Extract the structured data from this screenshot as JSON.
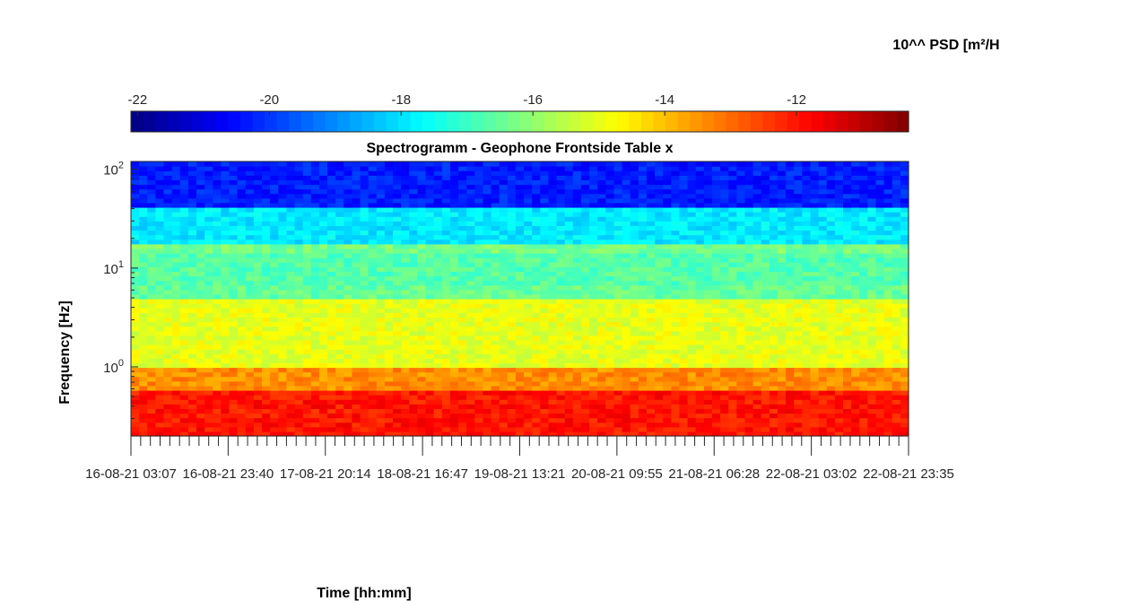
{
  "chart_data": {
    "type": "heatmap",
    "title": "Spectrogramm - Geophone Frontside Table x",
    "xlabel": "Time [hh:mm]",
    "ylabel": "Frequency [Hz]",
    "y_scale": "log",
    "ylim": [
      0.2,
      120
    ],
    "y_ticks": [
      {
        "base": "10",
        "exp": "0",
        "value": 1
      },
      {
        "base": "10",
        "exp": "1",
        "value": 10
      },
      {
        "base": "10",
        "exp": "2",
        "value": 100
      }
    ],
    "x_ticks": [
      "16-08-21 03:07",
      "16-08-21 23:40",
      "17-08-21 20:14",
      "18-08-21 16:47",
      "19-08-21 13:21",
      "20-08-21 09:55",
      "21-08-21 06:28",
      "22-08-21 03:02",
      "22-08-21 23:35"
    ],
    "colorbar": {
      "label": "10^^ PSD [m²/H",
      "range": [
        -22.1,
        -10.3
      ],
      "ticks": [
        "-22",
        "-20",
        "-18",
        "-16",
        "-14",
        "-12"
      ],
      "tick_values": [
        -22,
        -20,
        -18,
        -16,
        -14,
        -12
      ],
      "colormap": "jet"
    },
    "bands": [
      {
        "f_low": 0.2,
        "f_high": 0.6,
        "log_psd": -12.0
      },
      {
        "f_low": 0.6,
        "f_high": 1.0,
        "log_psd": -13.4
      },
      {
        "f_low": 1.0,
        "f_high": 5.0,
        "log_psd": -15.0
      },
      {
        "f_low": 5.0,
        "f_high": 6.5,
        "log_psd": -16.5
      },
      {
        "f_low": 6.5,
        "f_high": 14.0,
        "log_psd": -16.7
      },
      {
        "f_low": 14.0,
        "f_high": 17.0,
        "log_psd": -16.3
      },
      {
        "f_low": 17.0,
        "f_high": 40.0,
        "log_psd": -17.9
      },
      {
        "f_low": 40.0,
        "f_high": 120.0,
        "log_psd": -20.3
      }
    ]
  }
}
